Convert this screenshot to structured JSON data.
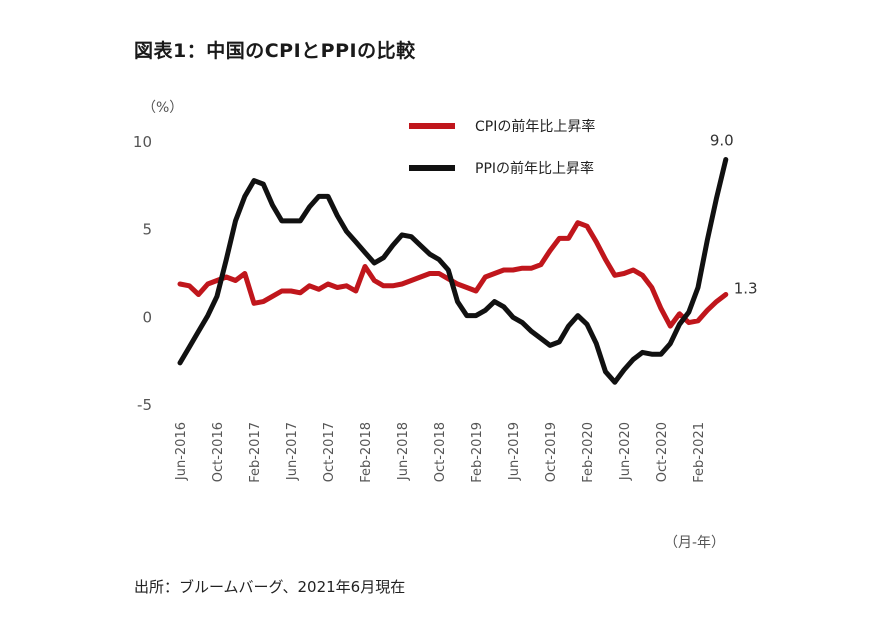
{
  "title": "図表1：中国のCPIとPPIの比較",
  "source": "出所：ブルームバーグ、2021年6月現在",
  "chart_data": {
    "type": "line",
    "title": "図表1：中国のCPIとPPIの比較",
    "ylabel": "（%）",
    "xlabel": "（月-年）",
    "ylim": [
      -5,
      10
    ],
    "yticks": [
      "10",
      "5",
      "0",
      "-5"
    ],
    "yticks_values": [
      10,
      5,
      0,
      -5
    ],
    "x_tick_labels": [
      "Jun-2016",
      "Oct-2016",
      "Feb-2017",
      "Jun-2017",
      "Oct-2017",
      "Feb-2018",
      "Jun-2018",
      "Oct-2018",
      "Feb-2019",
      "Jun-2019",
      "Oct-2019",
      "Feb-2020",
      "Jun-2020",
      "Oct-2020",
      "Feb-2021"
    ],
    "x": [
      "Jun-2016",
      "Jul-2016",
      "Aug-2016",
      "Sep-2016",
      "Oct-2016",
      "Nov-2016",
      "Dec-2016",
      "Jan-2017",
      "Feb-2017",
      "Mar-2017",
      "Apr-2017",
      "May-2017",
      "Jun-2017",
      "Jul-2017",
      "Aug-2017",
      "Sep-2017",
      "Oct-2017",
      "Nov-2017",
      "Dec-2017",
      "Jan-2018",
      "Feb-2018",
      "Mar-2018",
      "Apr-2018",
      "May-2018",
      "Jun-2018",
      "Jul-2018",
      "Aug-2018",
      "Sep-2018",
      "Oct-2018",
      "Nov-2018",
      "Dec-2018",
      "Jan-2019",
      "Feb-2019",
      "Mar-2019",
      "Apr-2019",
      "May-2019",
      "Jun-2019",
      "Jul-2019",
      "Aug-2019",
      "Sep-2019",
      "Oct-2019",
      "Nov-2019",
      "Dec-2019",
      "Jan-2020",
      "Feb-2020",
      "Mar-2020",
      "Apr-2020",
      "May-2020",
      "Jun-2020",
      "Jul-2020",
      "Aug-2020",
      "Sep-2020",
      "Oct-2020",
      "Nov-2020",
      "Dec-2020",
      "Jan-2021",
      "Feb-2021",
      "Mar-2021",
      "Apr-2021",
      "May-2021"
    ],
    "series": [
      {
        "name": "CPIの前年比上昇率",
        "color": "#c0161c",
        "values": [
          1.9,
          1.8,
          1.3,
          1.9,
          2.1,
          2.3,
          2.1,
          2.5,
          0.8,
          0.9,
          1.2,
          1.5,
          1.5,
          1.4,
          1.8,
          1.6,
          1.9,
          1.7,
          1.8,
          1.5,
          2.9,
          2.1,
          1.8,
          1.8,
          1.9,
          2.1,
          2.3,
          2.5,
          2.5,
          2.2,
          1.9,
          1.7,
          1.5,
          2.3,
          2.5,
          2.7,
          2.7,
          2.8,
          2.8,
          3.0,
          3.8,
          4.5,
          4.5,
          5.4,
          5.2,
          4.3,
          3.3,
          2.4,
          2.5,
          2.7,
          2.4,
          1.7,
          0.5,
          -0.5,
          0.2,
          -0.3,
          -0.2,
          0.4,
          0.9,
          1.3
        ],
        "end_label": "1.3"
      },
      {
        "name": "PPIの前年比上昇率",
        "color": "#111111",
        "values": [
          -2.6,
          -1.7,
          -0.8,
          0.1,
          1.2,
          3.3,
          5.5,
          6.9,
          7.8,
          7.6,
          6.4,
          5.5,
          5.5,
          5.5,
          6.3,
          6.9,
          6.9,
          5.8,
          4.9,
          4.3,
          3.7,
          3.1,
          3.4,
          4.1,
          4.7,
          4.6,
          4.1,
          3.6,
          3.3,
          2.7,
          0.9,
          0.1,
          0.1,
          0.4,
          0.9,
          0.6,
          0.0,
          -0.3,
          -0.8,
          -1.2,
          -1.6,
          -1.4,
          -0.5,
          0.1,
          -0.4,
          -1.5,
          -3.1,
          -3.7,
          -3.0,
          -2.4,
          -2.0,
          -2.1,
          -2.1,
          -1.5,
          -0.4,
          0.3,
          1.7,
          4.4,
          6.8,
          9.0
        ],
        "end_label": "9.0"
      }
    ],
    "legend_position": "top-right",
    "grid": false
  }
}
